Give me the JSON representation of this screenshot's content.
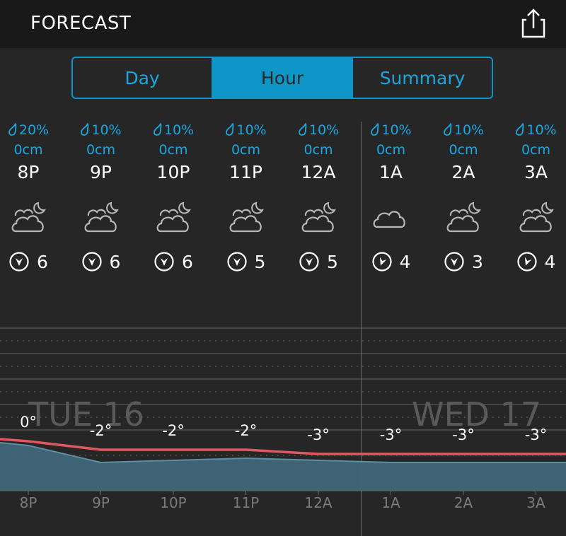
{
  "header": {
    "title": "FORECAST",
    "share_icon": "share-icon"
  },
  "tabs": [
    {
      "label": "Day",
      "active": false
    },
    {
      "label": "Hour",
      "active": true
    },
    {
      "label": "Summary",
      "active": false
    }
  ],
  "colors": {
    "accent": "#0e96c8",
    "temp_line": "#e0585f",
    "feels_like_fill": "#3e6678"
  },
  "hours": [
    {
      "precip": "20%",
      "snow": "0cm",
      "time": "8P",
      "icon": "partly-cloudy-night-icon",
      "wind": "6",
      "wind_dir_deg": 180
    },
    {
      "precip": "10%",
      "snow": "0cm",
      "time": "9P",
      "icon": "partly-cloudy-night-icon",
      "wind": "6",
      "wind_dir_deg": 180
    },
    {
      "precip": "10%",
      "snow": "0cm",
      "time": "10P",
      "icon": "partly-cloudy-night-icon",
      "wind": "6",
      "wind_dir_deg": 180
    },
    {
      "precip": "10%",
      "snow": "0cm",
      "time": "11P",
      "icon": "partly-cloudy-night-icon",
      "wind": "5",
      "wind_dir_deg": 180
    },
    {
      "precip": "10%",
      "snow": "0cm",
      "time": "12A",
      "icon": "partly-cloudy-night-icon",
      "wind": "5",
      "wind_dir_deg": 180
    },
    {
      "precip": "10%",
      "snow": "0cm",
      "time": "1A",
      "icon": "cloudy-icon",
      "wind": "4",
      "wind_dir_deg": 200
    },
    {
      "precip": "10%",
      "snow": "0cm",
      "time": "2A",
      "icon": "partly-cloudy-night-icon",
      "wind": "3",
      "wind_dir_deg": 180
    },
    {
      "precip": "10%",
      "snow": "0cm",
      "time": "3A",
      "icon": "partly-cloudy-night-icon",
      "wind": "4",
      "wind_dir_deg": 200
    }
  ],
  "chart_data": {
    "type": "line",
    "day_labels": [
      "TUE 16",
      "WED 17"
    ],
    "x": [
      "8P",
      "9P",
      "10P",
      "11P",
      "12A",
      "1A",
      "2A",
      "3A"
    ],
    "series": [
      {
        "values": [
          0,
          -2,
          -2,
          -2,
          -3,
          -3,
          -3,
          -3
        ],
        "value_labels": [
          "0°",
          "-2°",
          "-2°",
          "-2°",
          "-3°",
          "-3°",
          "-3°",
          "-3°"
        ]
      },
      {
        "values": [
          0,
          -4,
          -3.5,
          -3,
          -3.5,
          -4,
          -4,
          -4
        ]
      }
    ]
  }
}
